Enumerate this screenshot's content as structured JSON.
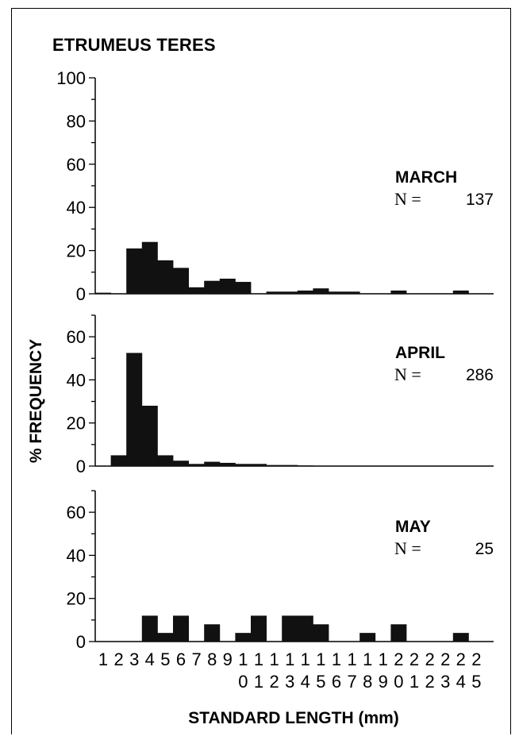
{
  "chart_data": {
    "type": "bar",
    "title": "ETRUMEUS TERES",
    "ylabel": "% FREQUENCY",
    "xlabel": "STANDARD LENGTH (mm)",
    "x_ticks": [
      "1",
      "2",
      "3",
      "4",
      "5",
      "6",
      "7",
      "8",
      "9",
      "10",
      "11",
      "12",
      "13",
      "14",
      "15",
      "16",
      "17",
      "18",
      "19",
      "20",
      "21",
      "22",
      "23",
      "24",
      "25"
    ],
    "panels": [
      {
        "month": "MARCH",
        "n_label": "N =",
        "n_value": "137",
        "ylim": [
          0,
          100
        ],
        "yticks": [
          0,
          20,
          40,
          60,
          80,
          100
        ],
        "values": [
          0.5,
          0,
          21,
          24,
          15.5,
          12,
          3,
          6,
          7,
          5.5,
          0,
          1,
          1,
          1.5,
          2.5,
          1,
          1,
          0,
          0,
          1.5,
          0,
          0,
          0,
          1.5,
          0
        ]
      },
      {
        "month": "APRIL",
        "n_label": "N =",
        "n_value": "286",
        "ylim": [
          0,
          70
        ],
        "yticks": [
          0,
          20,
          40,
          60
        ],
        "values": [
          0,
          5,
          52.5,
          28,
          5,
          2.5,
          1,
          2,
          1.5,
          1,
          1,
          0.5,
          0.5,
          0.3,
          0,
          0,
          0,
          0,
          0,
          0,
          0,
          0,
          0,
          0,
          0
        ]
      },
      {
        "month": "MAY",
        "n_label": "N =",
        "n_value": "25",
        "ylim": [
          0,
          70
        ],
        "yticks": [
          0,
          20,
          40,
          60
        ],
        "values": [
          0,
          0,
          0,
          12,
          4,
          12,
          0,
          8,
          0,
          4,
          12,
          0,
          12,
          12,
          8,
          0,
          0,
          4,
          0,
          8,
          0,
          0,
          0,
          4,
          0
        ]
      }
    ],
    "grid": false,
    "bar_color": "#111111"
  }
}
